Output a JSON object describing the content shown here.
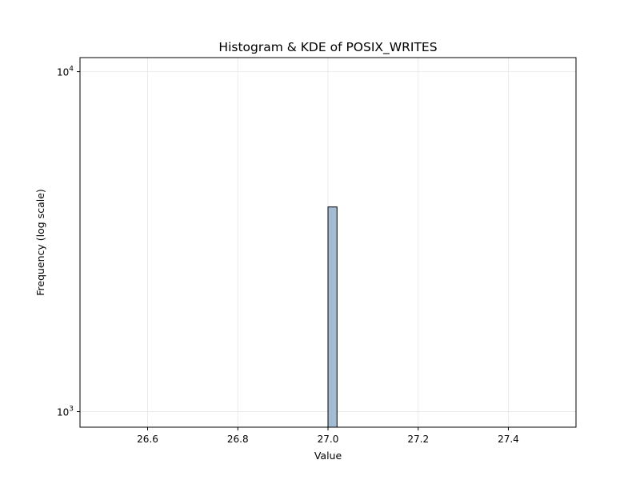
{
  "chart_data": {
    "type": "bar",
    "title": "Histogram & KDE of POSIX_WRITES",
    "xlabel": "Value",
    "ylabel": "Frequency (log scale)",
    "x_scale": "linear",
    "y_scale": "log",
    "xlim": [
      26.45,
      27.55
    ],
    "ylim": [
      900,
      11000
    ],
    "x_ticks": [
      26.6,
      26.8,
      27.0,
      27.2,
      27.4
    ],
    "x_tick_labels": [
      "26.6",
      "26.8",
      "27.0",
      "27.2",
      "27.4"
    ],
    "y_ticks": [
      1000,
      10000
    ],
    "y_tick_labels": [
      {
        "base": "10",
        "exp": "3"
      },
      {
        "base": "10",
        "exp": "4"
      }
    ],
    "grid": true,
    "bins": [
      {
        "x_start": 27.0,
        "x_end": 27.02,
        "count": 4000
      }
    ],
    "colors": {
      "bar_fill": "#a3bcd4",
      "bar_edge": "#000000",
      "grid": "#e6e6e6"
    }
  }
}
